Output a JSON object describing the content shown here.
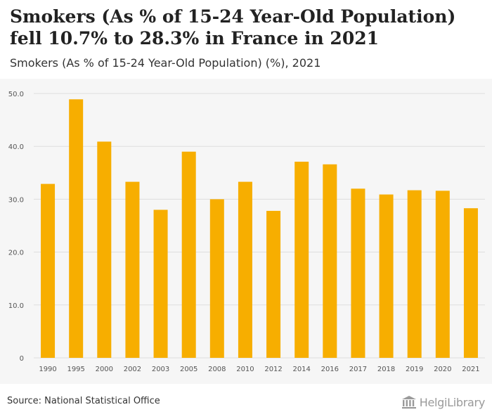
{
  "header": {
    "title": "Smokers (As % of 15-24 Year-Old Population) fell 10.7% to 28.3% in France in 2021",
    "subtitle": "Smokers (As % of 15-24 Year-Old Population) (%), 2021"
  },
  "footer": {
    "source": "Source: National Statistical Office",
    "logo_text": "HelgiLibrary"
  },
  "colors": {
    "bar": "#f7ae00",
    "grid": "#dddddd",
    "axis_text": "#555555",
    "plot_bg": "#f6f6f6"
  },
  "chart_data": {
    "type": "bar",
    "title": "Smokers (As % of 15-24 Year-Old Population) fell 10.7% to 28.3% in France in 2021",
    "subtitle": "Smokers (As % of 15-24 Year-Old Population) (%), 2021",
    "categories": [
      "1990",
      "1995",
      "2000",
      "2002",
      "2003",
      "2005",
      "2008",
      "2010",
      "2012",
      "2014",
      "2016",
      "2017",
      "2018",
      "2019",
      "2020",
      "2021"
    ],
    "values": [
      32.9,
      48.9,
      40.9,
      33.3,
      28.0,
      39.0,
      30.0,
      33.3,
      27.8,
      37.1,
      36.6,
      32.0,
      30.9,
      31.7,
      31.6,
      28.3
    ],
    "yticks": [
      "0",
      "10.0",
      "20.0",
      "30.0",
      "40.0",
      "50.0"
    ],
    "ylim": [
      0,
      50
    ],
    "grid": true,
    "legend": "none"
  }
}
